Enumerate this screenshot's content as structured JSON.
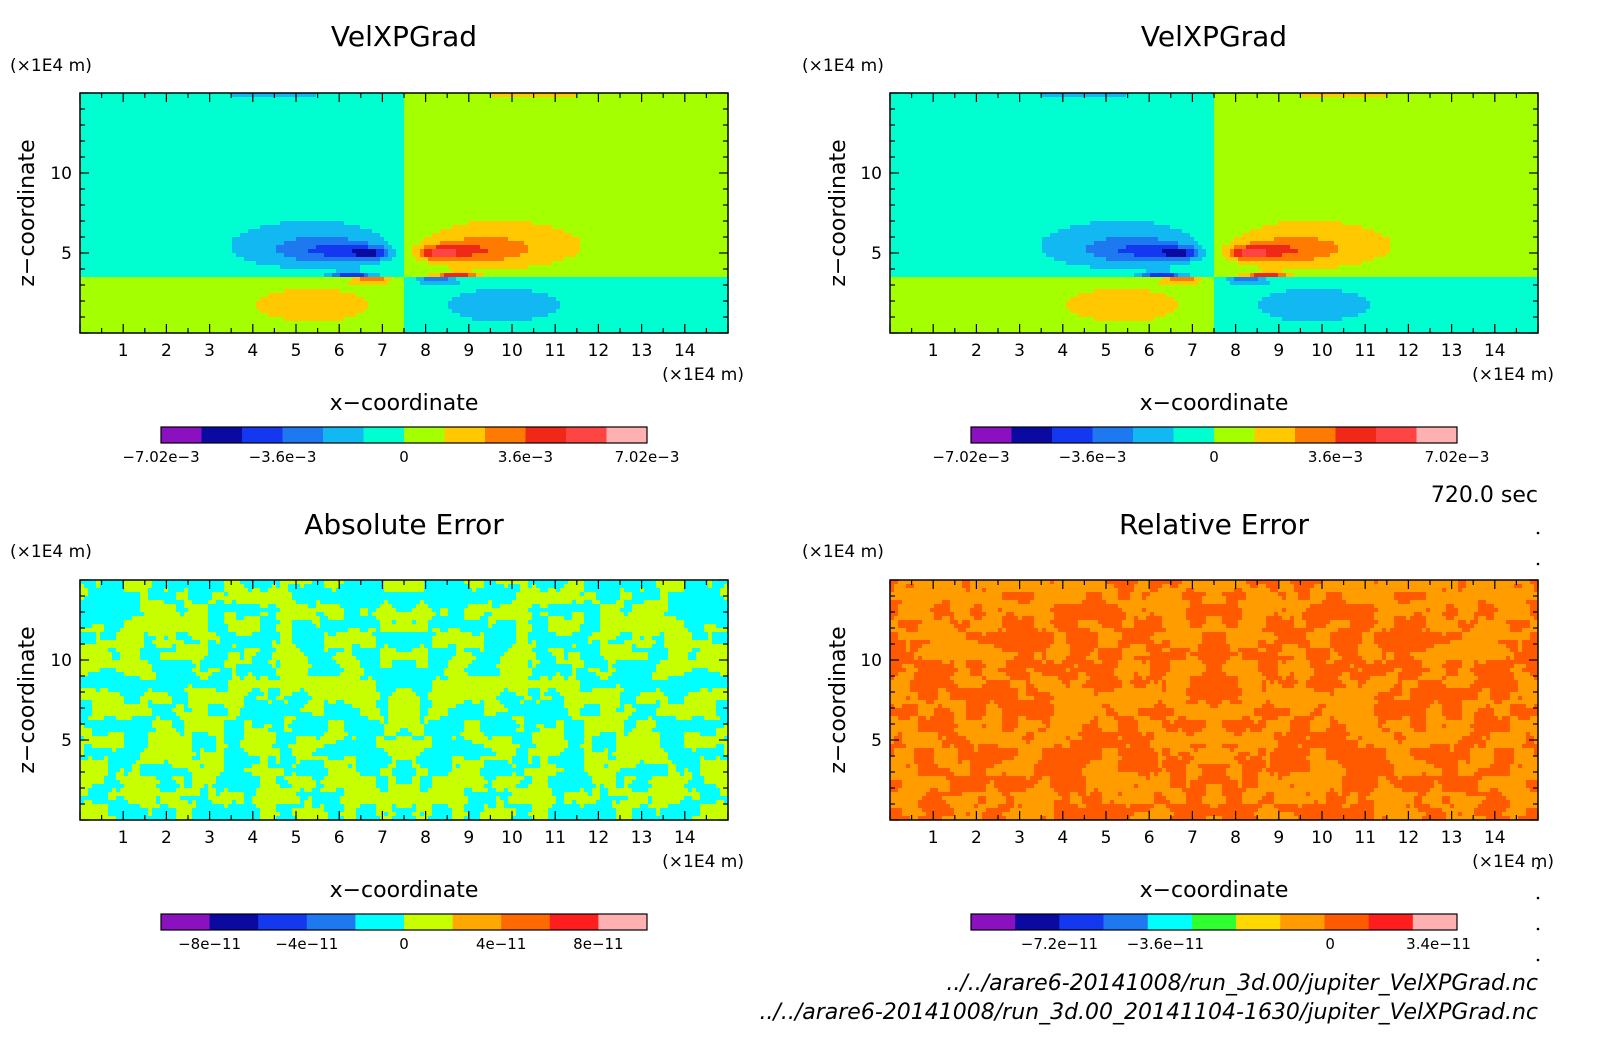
{
  "time_label": "720.0 sec",
  "file_paths": [
    "../../arare6-20141008/run_3d.00/jupiter_VelXPGrad.nc",
    "../../arare6-20141008/run_3d.00_20141104-1630/jupiter_VelXPGrad.nc"
  ],
  "chart_data": [
    {
      "type": "heatmap",
      "title": "VelXPGrad",
      "xlabel": "x−coordinate",
      "ylabel": "z−coordinate",
      "x_unit": "(×1E4 m)",
      "y_unit": "(×1E4 m)",
      "xlim": [
        0,
        15
      ],
      "ylim": [
        0,
        15
      ],
      "x_ticks": [
        "1",
        "2",
        "3",
        "4",
        "5",
        "6",
        "7",
        "8",
        "9",
        "10",
        "11",
        "12",
        "13",
        "14"
      ],
      "y_ticks": [
        "5",
        "10"
      ],
      "field": "dipole",
      "sign": 1,
      "colorbar": {
        "colors": [
          "#8a10c0",
          "#0a0aa0",
          "#1438f0",
          "#1e78f0",
          "#12b8f2",
          "#00ffd0",
          "#a4ff00",
          "#ffc800",
          "#ff7a00",
          "#f02818",
          "#ff4444",
          "#ffb0b0"
        ],
        "tick_labels": [
          "−7.02e−3",
          "−3.6e−3",
          "0",
          "3.6e−3",
          "7.02e−3"
        ],
        "tick_fracs": [
          0.0,
          0.25,
          0.5,
          0.75,
          1.0
        ]
      }
    },
    {
      "type": "heatmap",
      "title": "VelXPGrad",
      "xlabel": "x−coordinate",
      "ylabel": "z−coordinate",
      "x_unit": "(×1E4 m)",
      "y_unit": "(×1E4 m)",
      "xlim": [
        0,
        15
      ],
      "ylim": [
        0,
        15
      ],
      "x_ticks": [
        "1",
        "2",
        "3",
        "4",
        "5",
        "6",
        "7",
        "8",
        "9",
        "10",
        "11",
        "12",
        "13",
        "14"
      ],
      "y_ticks": [
        "5",
        "10"
      ],
      "field": "dipole",
      "sign": 1,
      "colorbar": {
        "colors": [
          "#8a10c0",
          "#0a0aa0",
          "#1438f0",
          "#1e78f0",
          "#12b8f2",
          "#00ffd0",
          "#a4ff00",
          "#ffc800",
          "#ff7a00",
          "#f02818",
          "#ff4444",
          "#ffb0b0"
        ],
        "tick_labels": [
          "−7.02e−3",
          "−3.6e−3",
          "0",
          "3.6e−3",
          "7.02e−3"
        ],
        "tick_fracs": [
          0.0,
          0.25,
          0.5,
          0.75,
          1.0
        ]
      }
    },
    {
      "type": "heatmap",
      "title": "Absolute Error",
      "xlabel": "x−coordinate",
      "ylabel": "z−coordinate",
      "x_unit": "(×1E4 m)",
      "y_unit": "(×1E4 m)",
      "xlim": [
        0,
        15
      ],
      "ylim": [
        0,
        15
      ],
      "x_ticks": [
        "1",
        "2",
        "3",
        "4",
        "5",
        "6",
        "7",
        "8",
        "9",
        "10",
        "11",
        "12",
        "13",
        "14"
      ],
      "y_ticks": [
        "5",
        "10"
      ],
      "field": "noise",
      "noise_colors": [
        "#00ffff",
        "#c8ff00"
      ],
      "colorbar": {
        "colors": [
          "#8a10c0",
          "#0a0aa0",
          "#1438f0",
          "#1e78f0",
          "#00ffff",
          "#c8ff00",
          "#ffa800",
          "#ff6a00",
          "#ff1e1e",
          "#ffb0b0"
        ],
        "tick_labels": [
          "−8e−11",
          "−4e−11",
          "0",
          "4e−11",
          "8e−11"
        ],
        "tick_fracs": [
          0.1,
          0.3,
          0.5,
          0.7,
          0.9
        ]
      }
    },
    {
      "type": "heatmap",
      "title": "Relative Error",
      "xlabel": "x−coordinate",
      "ylabel": "z−coordinate",
      "x_unit": "(×1E4 m)",
      "y_unit": "(×1E4 m)",
      "xlim": [
        0,
        15
      ],
      "ylim": [
        0,
        15
      ],
      "x_ticks": [
        "1",
        "2",
        "3",
        "4",
        "5",
        "6",
        "7",
        "8",
        "9",
        "10",
        "11",
        "12",
        "13",
        "14"
      ],
      "y_ticks": [
        "5",
        "10"
      ],
      "field": "noise",
      "noise_colors": [
        "#ff5a00",
        "#ff9c00"
      ],
      "colorbar": {
        "colors": [
          "#8a10c0",
          "#0a0aa0",
          "#1438f0",
          "#1e78f0",
          "#00ffff",
          "#30ff30",
          "#ffd800",
          "#ff9c00",
          "#ff5a00",
          "#ff1e1e",
          "#ffb0b0"
        ],
        "tick_labels": [
          "−7.2e−11",
          "−3.6e−11",
          "0",
          "3.4e−11"
        ],
        "tick_fracs": [
          0.182,
          0.4,
          0.739,
          0.962
        ]
      }
    }
  ]
}
